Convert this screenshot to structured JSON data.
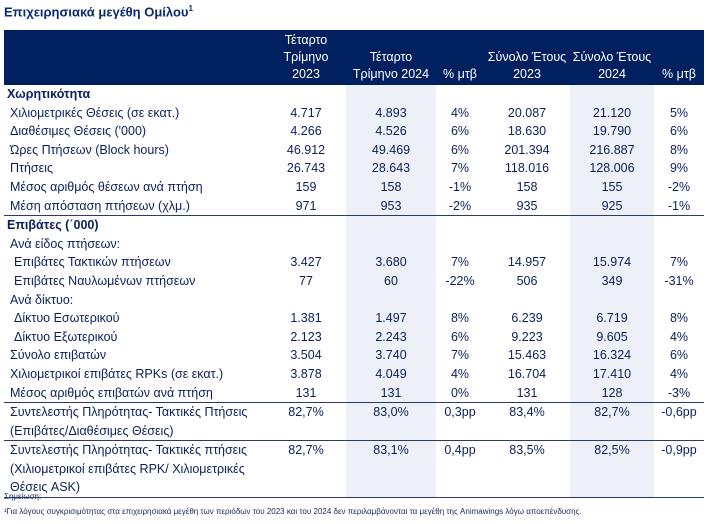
{
  "title": "Επιχειρησιακά μεγέθη Ομίλου",
  "title_sup": "1",
  "headers": [
    "",
    "Τέταρτο Τρίμηνο 2023",
    "Τέταρτο Τρίμηνο 2024",
    "% μτβ",
    "Σύνολο Έτους 2023",
    "Σύνολο Έτους 2024",
    "% μτβ"
  ],
  "rows": [
    {
      "label": "Χωρητικότητα",
      "type": "sec",
      "values": [
        "",
        "",
        "",
        "",
        "",
        ""
      ]
    },
    {
      "label": "Χιλιομετρικές Θέσεις (σε εκατ.)",
      "values": [
        "4.717",
        "4.893",
        "4%",
        "20.087",
        "21.120",
        "5%"
      ]
    },
    {
      "label": "Διαθέσιμες Θέσεις ('000)",
      "values": [
        "4.266",
        "4.526",
        "6%",
        "18.630",
        "19.790",
        "6%"
      ]
    },
    {
      "label": "Ώρες Πτήσεων (Block hours)",
      "values": [
        "46.912",
        "49.469",
        "6%",
        "201.394",
        "216.887",
        "8%"
      ]
    },
    {
      "label": "Πτήσεις",
      "values": [
        "26.743",
        "28.643",
        "7%",
        "118.016",
        "128.006",
        "9%"
      ]
    },
    {
      "label": "Μέσος αριθμός θέσεων ανά πτήση",
      "values": [
        "159",
        "158",
        "-1%",
        "158",
        "155",
        "-2%"
      ]
    },
    {
      "label": "Μέση απόσταση πτήσεων (χλμ.)",
      "type": "bt",
      "values": [
        "971",
        "953",
        "-2%",
        "935",
        "925",
        "-1%"
      ]
    },
    {
      "label": "Επιβάτες (΄000)",
      "type": "sec",
      "values": [
        "",
        "",
        "",
        "",
        "",
        ""
      ]
    },
    {
      "label": "Ανά είδος πτήσεων:",
      "values": [
        "",
        "",
        "",
        "",
        "",
        ""
      ]
    },
    {
      "label": "Επιβάτες Τακτικών πτήσεων",
      "indent": true,
      "values": [
        "3.427",
        "3.680",
        "7%",
        "14.957",
        "15.974",
        "7%"
      ]
    },
    {
      "label": "Επιβάτες Ναυλωμένων πτήσεων",
      "indent": true,
      "values": [
        "77",
        "60",
        "-22%",
        "506",
        "349",
        "-31%"
      ]
    },
    {
      "label": "Ανά δίκτυο:",
      "values": [
        "",
        "",
        "",
        "",
        "",
        ""
      ]
    },
    {
      "label": "Δίκτυο Εσωτερικού",
      "indent": true,
      "values": [
        "1.381",
        "1.497",
        "8%",
        "6.239",
        "6.719",
        "8%"
      ]
    },
    {
      "label": "Δίκτυο Εξωτερικού",
      "indent": true,
      "values": [
        "2.123",
        "2.243",
        "6%",
        "9.223",
        "9.605",
        "4%"
      ]
    },
    {
      "label": "Σύνολο επιβατών",
      "values": [
        "3.504",
        "3.740",
        "7%",
        "15.463",
        "16.324",
        "6%"
      ]
    },
    {
      "label": "Χιλιομετρικοί επιβάτες RPKs (σε εκατ.)",
      "values": [
        "3.878",
        "4.049",
        "4%",
        "16.704",
        "17.410",
        "4%"
      ]
    },
    {
      "label": "Μέσος αριθμός επιβατών ανά πτήση",
      "type": "bt",
      "values": [
        "131",
        "131",
        "0%",
        "131",
        "128",
        "-3%"
      ]
    },
    {
      "label": "Συντελεστής Πληρότητας- Τακτικές Πτήσεις (Επιβάτες/Διαθέσιμες Θέσεις)",
      "type": "bt",
      "values": [
        "82,7%",
        "83,0%",
        "0,3pp",
        "83,4%",
        "82,7%",
        "-0,6pp"
      ]
    },
    {
      "label": "Συντελεστής Πληρότητας- Τακτικές πτήσεις (Χιλιομετρικοί επιβάτες RPK/ Χιλιομετρικές Θέσεις ASK)",
      "type": "bt",
      "values": [
        "82,7%",
        "83,1%",
        "0,4pp",
        "83,5%",
        "82,5%",
        "-0,9pp"
      ]
    }
  ],
  "note_title": "Σημείωση:",
  "note_text": "¹Για λόγους συγκρισιμότητας στα επιχειρησιακά μεγέθη των περιόδων του 2023 και του 2024 δεν περιλαμβάνονται τα μεγέθη της Animawings λόγω αποεπένδυσης."
}
